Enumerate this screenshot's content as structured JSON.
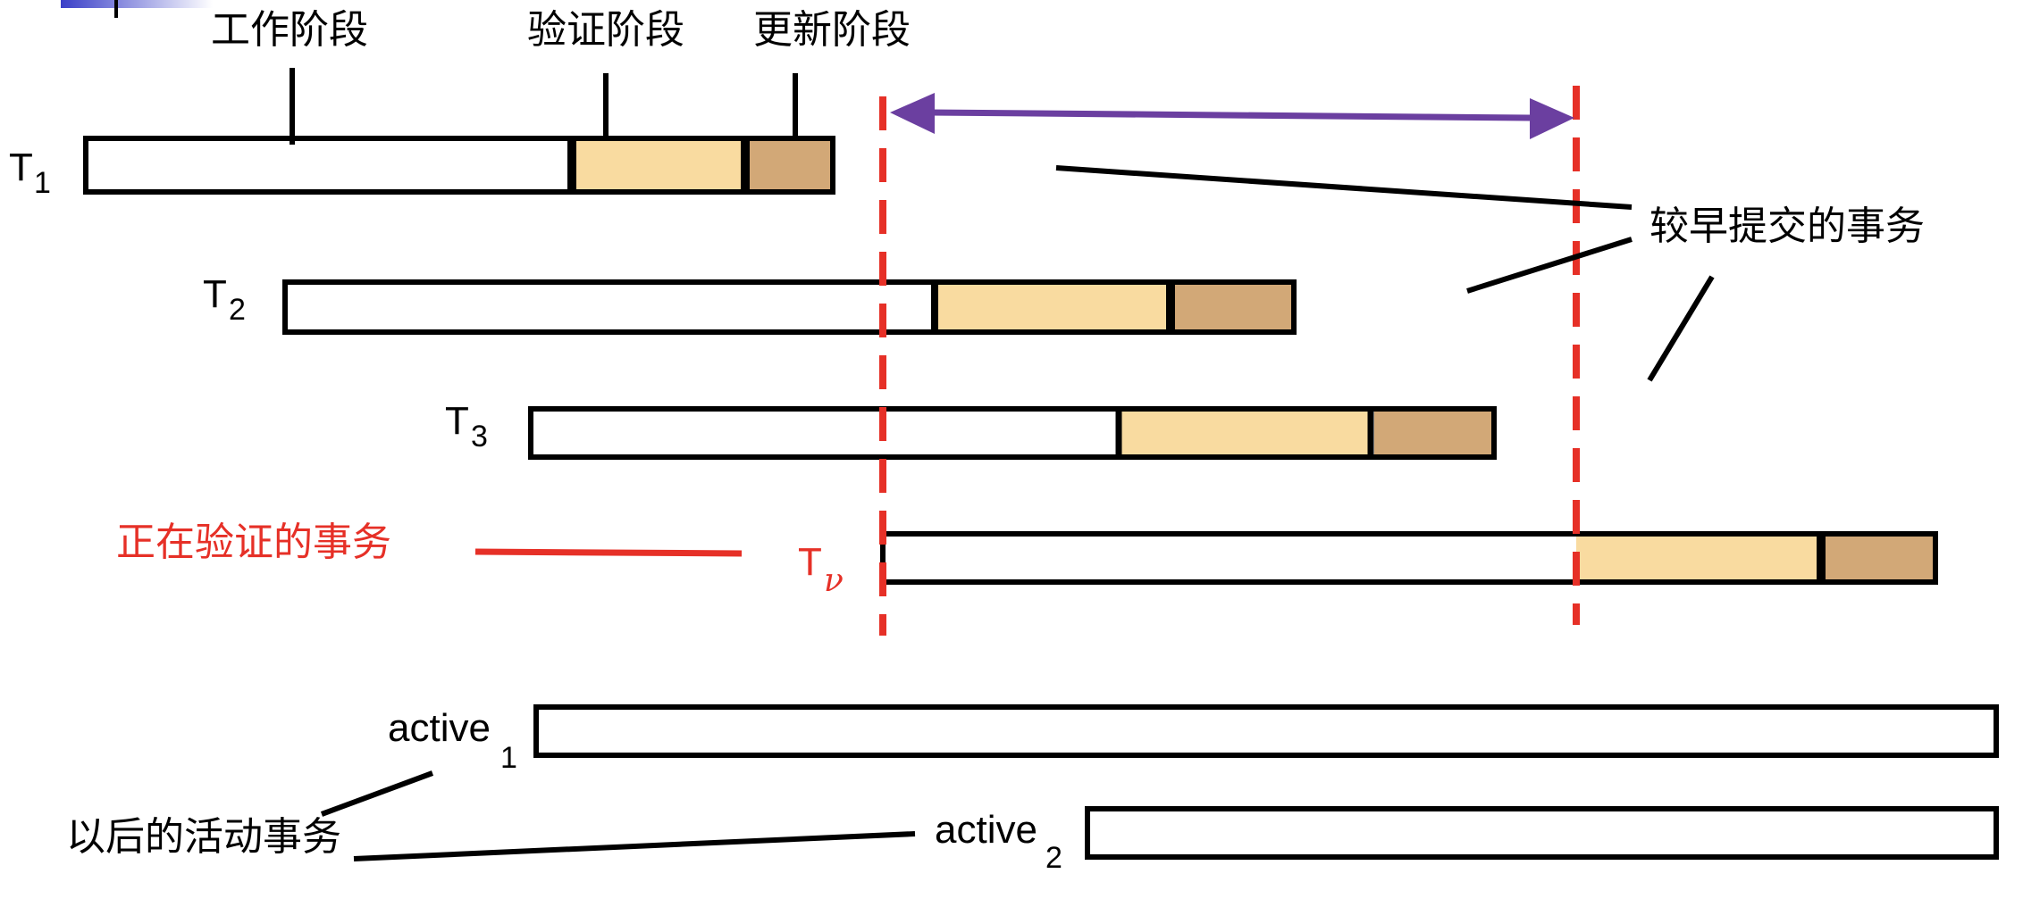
{
  "phase_labels": {
    "work": "工作阶段",
    "validate": "验证阶段",
    "update": "更新阶段"
  },
  "transactions": {
    "t1": {
      "main": "T",
      "sub": "1"
    },
    "t2": {
      "main": "T",
      "sub": "2"
    },
    "t3": {
      "main": "T",
      "sub": "3"
    },
    "tv": {
      "main": "T",
      "sub": "ν"
    }
  },
  "active": {
    "a1": {
      "main": "active",
      "sub": "1"
    },
    "a2": {
      "main": "active",
      "sub": "2"
    }
  },
  "annotations": {
    "earlier_committed": "较早提交的事务",
    "validating": "正在验证的事务",
    "later_active": "以后的活动事务"
  },
  "colors": {
    "validate_fill": "#f9dba0",
    "update_fill": "#d2a877",
    "dashed_line": "#e63027",
    "arrow": "#6b3fa0",
    "validating_text": "#e63027",
    "corner_accent": "#3a3fc8"
  }
}
